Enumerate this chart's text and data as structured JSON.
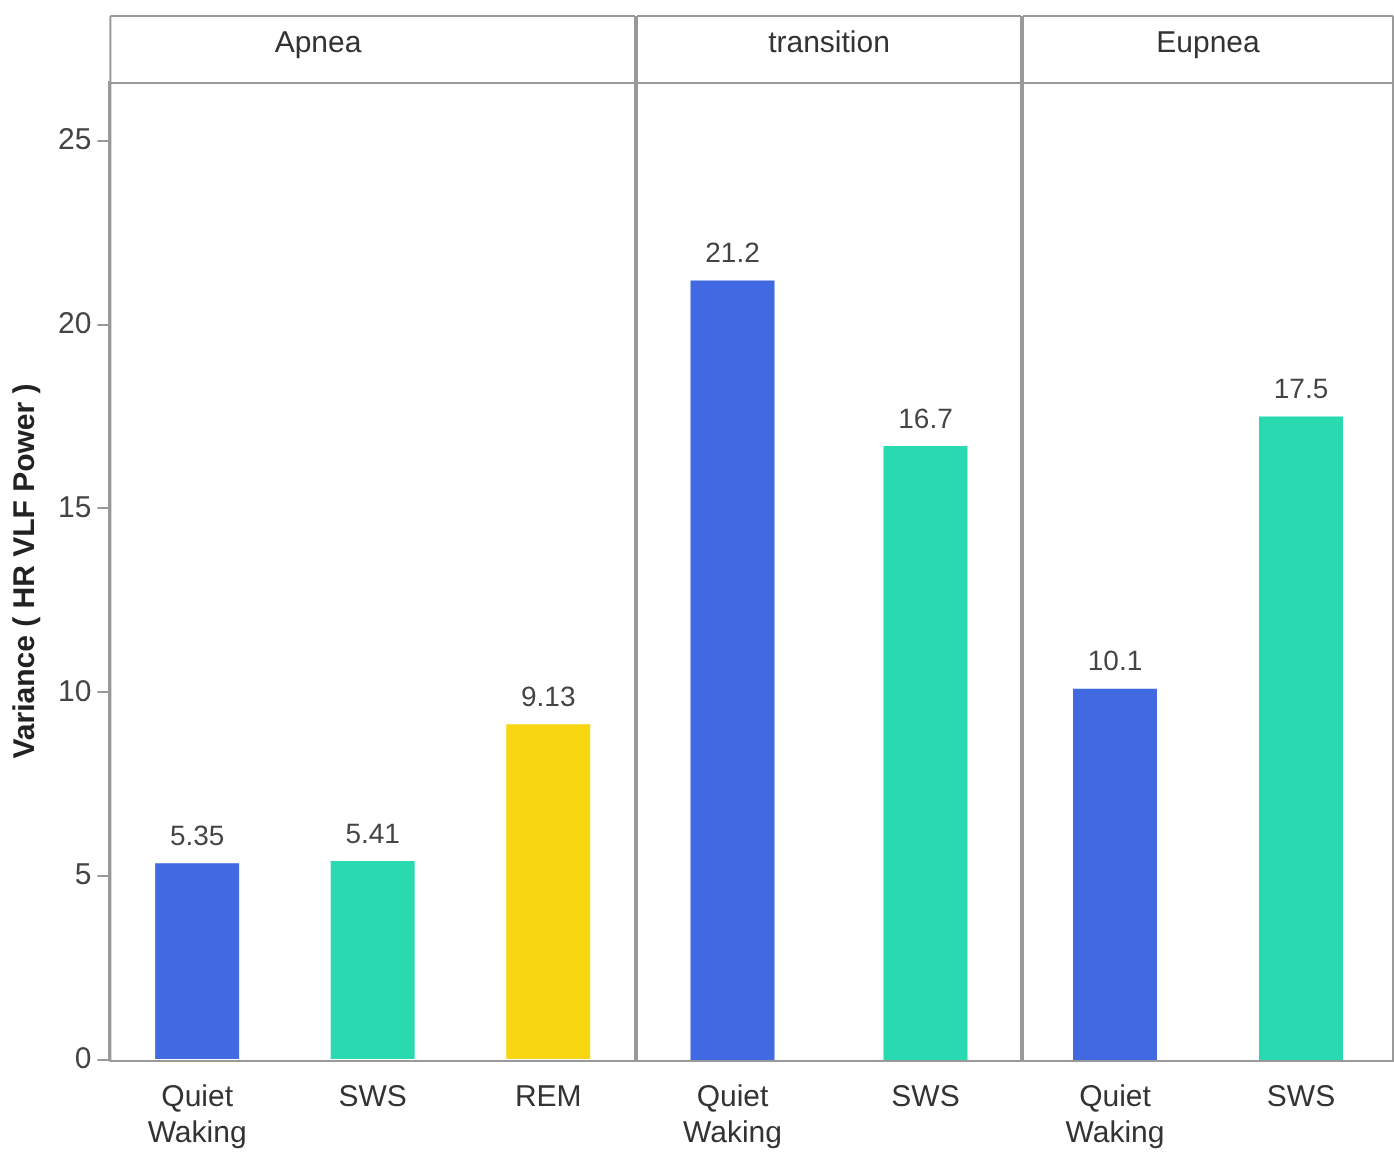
{
  "chart_data": [
    {
      "type": "bar",
      "title": "Apnea",
      "ylabel": "Variance ( HR VLF Power )",
      "categories": [
        "Quiet Waking",
        "SWS",
        "REM"
      ],
      "values": [
        5.35,
        5.41,
        9.13
      ],
      "colors": [
        "#4169e1",
        "#29d9b0",
        "#f7d510"
      ],
      "ylim": [
        0,
        26.6
      ],
      "yticks": [
        0,
        5,
        10,
        15,
        20,
        25
      ],
      "data_labels": true,
      "grid": false
    },
    {
      "type": "bar",
      "title": "transition",
      "categories": [
        "Quiet Waking",
        "SWS"
      ],
      "values": [
        21.2,
        16.7
      ],
      "colors": [
        "#4169e1",
        "#29d9b0"
      ],
      "ylim": [
        0,
        26.6
      ],
      "yticks": [
        0,
        5,
        10,
        15,
        20,
        25
      ],
      "data_labels": true,
      "grid": false,
      "tick_labels": "x"
    },
    {
      "type": "bar",
      "title": "Eupnea",
      "categories": [
        "Quiet Waking",
        "SWS"
      ],
      "values": [
        10.1,
        17.5
      ],
      "colors": [
        "#4169e1",
        "#29d9b0"
      ],
      "ylim": [
        0,
        26.6
      ],
      "yticks": [
        0,
        5,
        10,
        15,
        20,
        25
      ],
      "data_labels": true,
      "grid": false,
      "tick_labels": "x"
    }
  ]
}
